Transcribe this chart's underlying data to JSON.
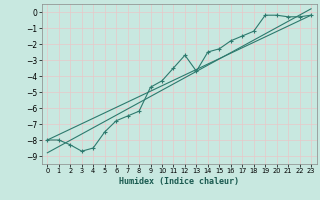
{
  "title": "",
  "xlabel": "Humidex (Indice chaleur)",
  "background_color": "#c8e8e0",
  "grid_color": "#e8c8c8",
  "line_color": "#2d7a6e",
  "xlim": [
    -0.5,
    23.5
  ],
  "ylim": [
    -9.5,
    0.5
  ],
  "yticks": [
    0,
    -1,
    -2,
    -3,
    -4,
    -5,
    -6,
    -7,
    -8,
    -9
  ],
  "xticks": [
    0,
    1,
    2,
    3,
    4,
    5,
    6,
    7,
    8,
    9,
    10,
    11,
    12,
    13,
    14,
    15,
    16,
    17,
    18,
    19,
    20,
    21,
    22,
    23
  ],
  "line1_x": [
    0,
    1,
    2,
    3,
    4,
    5,
    6,
    7,
    8,
    9,
    10,
    11,
    12,
    13,
    14,
    15,
    16,
    17,
    18,
    19,
    20,
    21,
    22,
    23
  ],
  "line1_y": [
    -8.0,
    -8.0,
    -8.3,
    -8.7,
    -8.5,
    -7.5,
    -6.8,
    -6.5,
    -6.2,
    -4.7,
    -4.3,
    -3.5,
    -2.7,
    -3.7,
    -2.5,
    -2.3,
    -1.8,
    -1.5,
    -1.2,
    -0.2,
    -0.2,
    -0.3,
    -0.3,
    -0.2
  ],
  "line2_x": [
    0,
    23
  ],
  "line2_y": [
    -8.0,
    -0.2
  ],
  "line3_x": [
    0,
    23
  ],
  "line3_y": [
    -8.8,
    0.2
  ]
}
